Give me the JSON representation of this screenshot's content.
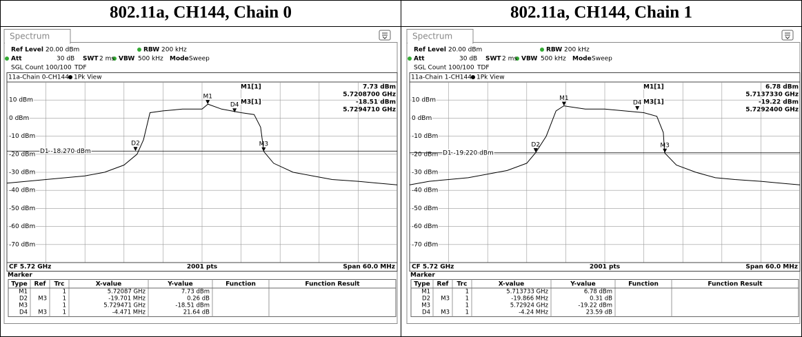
{
  "table": {
    "headers": [
      "802.11a, CH144, Chain 0",
      "802.11a, CH144, Chain 1"
    ]
  },
  "panels": [
    {
      "tab": "Spectrum",
      "settings": [
        {
          "label": "Ref Level",
          "value": "20.00 dBm"
        },
        {
          "label": "RBW",
          "value": "200 kHz"
        },
        {
          "label": "Att",
          "value": "30 dB"
        },
        {
          "label": "SWT",
          "value": "2 ms"
        },
        {
          "label": "VBW",
          "value": "500 kHz"
        },
        {
          "label": "Mode",
          "value": "Sweep"
        },
        {
          "label": "SGL Count 100/100",
          "value": "TDF"
        }
      ],
      "trace_name": "11a-Chain 0-CH144",
      "view": "1Pk View",
      "readout": [
        "M1[1]",
        "7.73 dBm",
        "5.7208700 GHz",
        "M3[1]",
        "-18.51 dBm",
        "5.7294710 GHz"
      ],
      "chart_data": {
        "type": "line",
        "xlim": [
          5.69,
          5.75
        ],
        "ylim": [
          -80,
          20
        ],
        "yticks": [
          {
            "value": 10,
            "label": "10 dBm"
          },
          {
            "value": 0,
            "label": "0 dBm"
          },
          {
            "value": -10,
            "label": "-10 dBm"
          },
          {
            "value": -20,
            "label": "-20 dBm"
          },
          {
            "value": -30,
            "label": "-30 dBm"
          },
          {
            "value": -40,
            "label": "-40 dBm"
          },
          {
            "value": -50,
            "label": "-50 dBm"
          },
          {
            "value": -60,
            "label": "-60 dBm"
          },
          {
            "value": -70,
            "label": "-70 dBm"
          }
        ],
        "x": [
          5.69,
          5.693,
          5.696,
          5.699,
          5.702,
          5.705,
          5.708,
          5.71,
          5.711,
          5.712,
          5.714,
          5.717,
          5.72,
          5.7209,
          5.723,
          5.726,
          5.728,
          5.729,
          5.7295,
          5.731,
          5.734,
          5.737,
          5.74,
          5.744,
          5.747,
          5.75
        ],
        "values": [
          -36,
          -35,
          -34,
          -33,
          -32,
          -30,
          -26,
          -20,
          -12,
          3,
          4,
          5,
          5,
          7.73,
          5,
          3,
          2,
          -5,
          -18.51,
          -25,
          -30,
          -32,
          -34,
          -35,
          -36,
          -37
        ],
        "color": "#000000",
        "threshold": {
          "label": "D1 -18.270 dBm",
          "value": -18.27
        },
        "markers": [
          {
            "label": "M1",
            "x": 5.72087,
            "y": 7.73
          },
          {
            "label": "D2",
            "x": 5.70977,
            "y": -18.25
          },
          {
            "label": "M3",
            "x": 5.729471,
            "y": -18.51
          },
          {
            "label": "D4",
            "x": 5.725,
            "y": 3.13
          }
        ],
        "footer": [
          "CF 5.72 GHz",
          "2001 pts",
          "Span 60.0 MHz"
        ]
      },
      "marker_table": {
        "title": "Marker",
        "columns": [
          "Type",
          "Ref",
          "Trc",
          "X-value",
          "Y-value",
          "Function",
          "Function Result"
        ],
        "rows": [
          [
            "M1",
            null,
            "1",
            "5.72087 GHz",
            "7.73 dBm"
          ],
          [
            "D2",
            "M3",
            "1",
            "-19.701 MHz",
            "0.26 dB"
          ],
          [
            "M3",
            null,
            "1",
            "5.729471 GHz",
            "-18.51 dBm"
          ],
          [
            "D4",
            "M3",
            "1",
            "-4.471 MHz",
            "21.64 dB"
          ]
        ]
      }
    },
    {
      "tab": "Spectrum",
      "settings": [
        {
          "label": "Ref Level",
          "value": "20.00 dBm"
        },
        {
          "label": "RBW",
          "value": "200 kHz"
        },
        {
          "label": "Att",
          "value": "30 dB"
        },
        {
          "label": "SWT",
          "value": "2 ms"
        },
        {
          "label": "VBW",
          "value": "500 kHz"
        },
        {
          "label": "Mode",
          "value": "Sweep"
        },
        {
          "label": "SGL Count 100/100",
          "value": "TDF"
        }
      ],
      "trace_name": "11a-Chain 1-CH144",
      "view": "1Pk View",
      "readout": [
        "M1[1]",
        "6.78 dBm",
        "5.7137330 GHz",
        "M3[1]",
        "-19.22 dBm",
        "5.7292400 GHz"
      ],
      "chart_data": {
        "type": "line",
        "xlim": [
          5.69,
          5.75
        ],
        "ylim": [
          -80,
          20
        ],
        "yticks": [
          {
            "value": 10,
            "label": "10 dBm"
          },
          {
            "value": 0,
            "label": "0 dBm"
          },
          {
            "value": -10,
            "label": "-10 dBm"
          },
          {
            "value": -20,
            "label": "-20 dBm"
          },
          {
            "value": -30,
            "label": "-30 dBm"
          },
          {
            "value": -40,
            "label": "-40 dBm"
          },
          {
            "value": -50,
            "label": "-50 dBm"
          },
          {
            "value": -60,
            "label": "-60 dBm"
          },
          {
            "value": -70,
            "label": "-70 dBm"
          }
        ],
        "x": [
          5.69,
          5.693,
          5.696,
          5.699,
          5.702,
          5.705,
          5.708,
          5.7094,
          5.711,
          5.7125,
          5.7137,
          5.717,
          5.72,
          5.723,
          5.726,
          5.728,
          5.729,
          5.7292,
          5.731,
          5.734,
          5.737,
          5.74,
          5.744,
          5.747,
          5.75
        ],
        "values": [
          -37,
          -35,
          -34,
          -33,
          -31,
          -29,
          -25,
          -19,
          -10,
          4,
          6.78,
          5,
          5,
          4,
          3,
          1,
          -8,
          -19.22,
          -26,
          -30,
          -33,
          -34,
          -35,
          -36,
          -37
        ],
        "color": "#000000",
        "threshold": {
          "label": "D1 -19.220 dBm",
          "value": -19.22
        },
        "markers": [
          {
            "label": "M1",
            "x": 5.713733,
            "y": 6.78
          },
          {
            "label": "D2",
            "x": 5.709374,
            "y": -18.91
          },
          {
            "label": "M3",
            "x": 5.72924,
            "y": -19.22
          },
          {
            "label": "D4",
            "x": 5.725,
            "y": 4.37
          }
        ],
        "footer": [
          "CF 5.72 GHz",
          "2001 pts",
          "Span 60.0 MHz"
        ]
      },
      "marker_table": {
        "title": "Marker",
        "columns": [
          "Type",
          "Ref",
          "Trc",
          "X-value",
          "Y-value",
          "Function",
          "Function Result"
        ],
        "rows": [
          [
            "M1",
            null,
            "1",
            "5.713733 GHz",
            "6.78 dBm"
          ],
          [
            "D2",
            "M3",
            "1",
            "-19.866 MHz",
            "0.31 dB"
          ],
          [
            "M3",
            null,
            "1",
            "5.72924 GHz",
            "-19.22 dBm"
          ],
          [
            "D4",
            "M3",
            "1",
            "-4.24 MHz",
            "23.59 dB"
          ]
        ]
      }
    }
  ]
}
